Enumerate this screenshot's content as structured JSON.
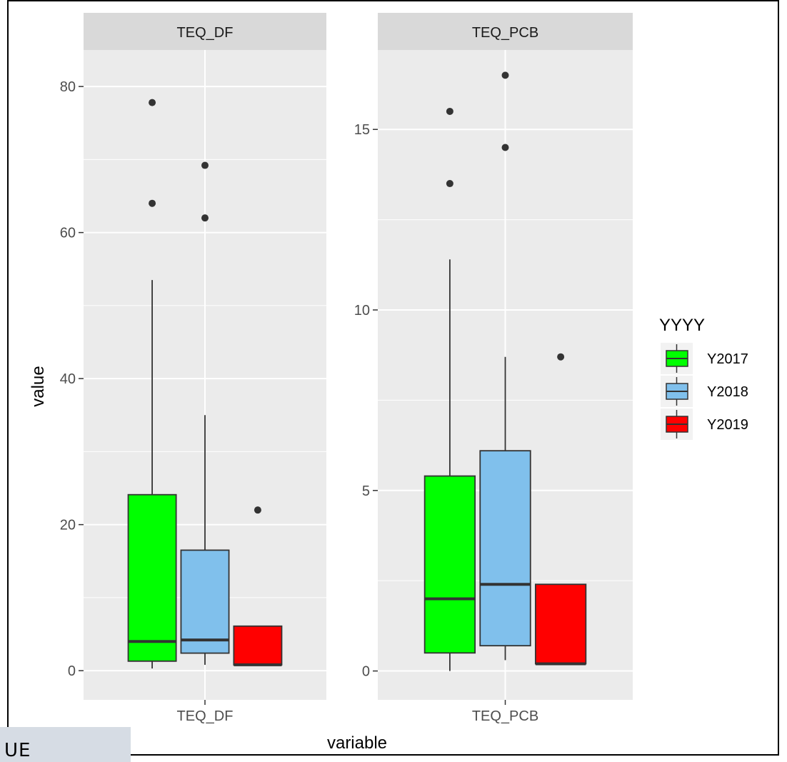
{
  "chart_data": {
    "type": "boxplot",
    "xlabel": "variable",
    "ylabel": "value",
    "legend": {
      "title": "YYYY",
      "placement": "right",
      "entries": [
        {
          "name": "Y2017",
          "color": "#00ff00"
        },
        {
          "name": "Y2018",
          "color": "#80c0ec"
        },
        {
          "name": "Y2019",
          "color": "#ff0000"
        }
      ]
    },
    "panels": [
      {
        "strip": "TEQ_DF",
        "category": "TEQ_DF",
        "ylim": [
          -4,
          85
        ],
        "yticks": [
          0,
          20,
          40,
          60,
          80
        ],
        "ytick_labels": [
          "0",
          "20",
          "40",
          "60",
          "80"
        ],
        "minor_grid": [
          10,
          30,
          50,
          70
        ],
        "boxes": [
          {
            "group": "Y2017",
            "whisker_low": 0.3,
            "q1": 1.3,
            "median": 4.0,
            "q3": 24.1,
            "whisker_high": 53.5,
            "outliers": [
              64.0,
              77.8
            ]
          },
          {
            "group": "Y2018",
            "whisker_low": 0.8,
            "q1": 2.4,
            "median": 4.2,
            "q3": 16.5,
            "whisker_high": 35.0,
            "outliers": [
              62.0,
              69.2
            ]
          },
          {
            "group": "Y2019",
            "whisker_low": 0.8,
            "q1": 0.8,
            "median": 0.8,
            "q3": 6.1,
            "whisker_high": 6.1,
            "outliers": [
              22.0
            ]
          }
        ]
      },
      {
        "strip": "TEQ_PCB",
        "category": "TEQ_PCB",
        "ylim": [
          -0.8,
          17.2
        ],
        "yticks": [
          0,
          5,
          10,
          15
        ],
        "ytick_labels": [
          "0",
          "5",
          "10",
          "15"
        ],
        "minor_grid": [
          2.5,
          7.5,
          12.5
        ],
        "boxes": [
          {
            "group": "Y2017",
            "whisker_low": 0.0,
            "q1": 0.5,
            "median": 2.0,
            "q3": 5.4,
            "whisker_high": 11.4,
            "outliers": [
              13.5,
              15.5
            ]
          },
          {
            "group": "Y2018",
            "whisker_low": 0.3,
            "q1": 0.7,
            "median": 2.4,
            "q3": 6.1,
            "whisker_high": 8.7,
            "outliers": [
              14.5,
              16.5
            ]
          },
          {
            "group": "Y2019",
            "whisker_low": 0.2,
            "q1": 0.2,
            "median": 0.2,
            "q3": 2.4,
            "whisker_high": 2.4,
            "outliers": [
              8.7
            ]
          }
        ]
      }
    ]
  },
  "corner_tab": {
    "text": "UE"
  }
}
